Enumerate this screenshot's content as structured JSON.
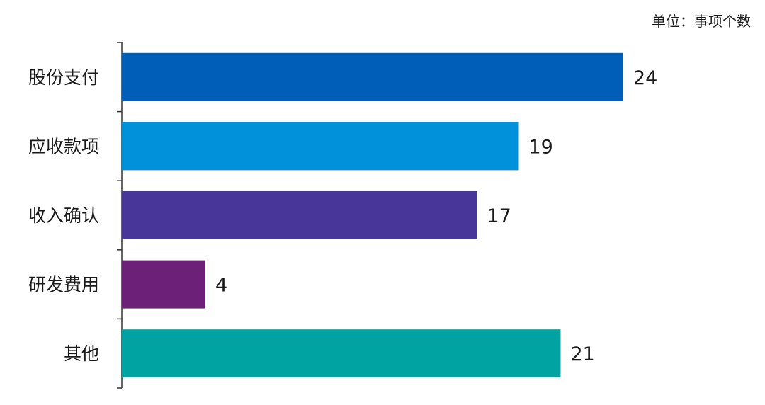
{
  "chart_data": {
    "type": "bar",
    "orientation": "horizontal",
    "unit_label": "单位：事项个数",
    "categories": [
      "股份支付",
      "应收款项",
      "收入确认",
      "研发费用",
      "其他"
    ],
    "values": [
      24,
      19,
      17,
      4,
      21
    ],
    "colors": [
      "#005EB8",
      "#0091DA",
      "#483698",
      "#6D2077",
      "#00A3A1"
    ],
    "xlim": [
      0,
      24
    ],
    "grid": false,
    "legend": "none"
  }
}
